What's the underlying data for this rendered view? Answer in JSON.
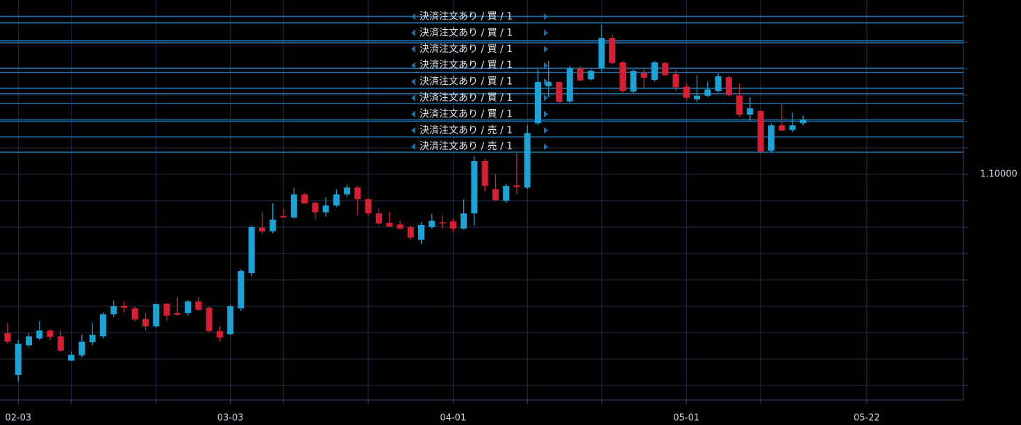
{
  "chart_data": {
    "type": "candlestick",
    "categories": [
      null,
      "02-03",
      null,
      null,
      null,
      null,
      null,
      null,
      null,
      null,
      null,
      null,
      null,
      null,
      null,
      null,
      null,
      null,
      null,
      null,
      null,
      "03-03",
      null,
      null,
      null,
      null,
      null,
      null,
      null,
      null,
      null,
      null,
      null,
      null,
      null,
      null,
      null,
      null,
      null,
      null,
      null,
      null,
      "04-01",
      null,
      null,
      null,
      null,
      null,
      null,
      null,
      null,
      null,
      null,
      null,
      null,
      null,
      null,
      null,
      null,
      null,
      null,
      null,
      null,
      null,
      "05-01",
      null,
      null,
      null,
      null,
      null,
      null,
      null,
      null,
      null,
      null,
      null,
      null,
      null,
      null,
      null,
      null,
      "05-22"
    ],
    "open": [
      1.0699,
      1.062,
      1.0676,
      1.0689,
      1.0704,
      1.0693,
      1.0647,
      1.0657,
      1.0682,
      1.0693,
      1.0735,
      1.0751,
      1.0746,
      1.0726,
      1.0712,
      1.0755,
      1.0737,
      1.0737,
      1.0759,
      1.0747,
      1.0703,
      1.0697,
      1.0746,
      1.0813,
      1.0899,
      1.0892,
      1.0921,
      1.0918,
      1.0962,
      1.0946,
      1.0928,
      1.0941,
      1.0962,
      1.0975,
      1.0953,
      1.0926,
      1.0908,
      1.0905,
      1.09,
      1.0876,
      1.09,
      1.0909,
      1.0911,
      1.0897,
      1.0926,
      1.1025,
      1.0972,
      1.095,
      1.0979,
      1.0975,
      1.1097,
      1.1167,
      1.1175,
      1.1138,
      1.1201,
      1.118,
      1.1201,
      1.1258,
      1.1212,
      1.1157,
      1.1192,
      1.1179,
      1.1211,
      1.119,
      1.1166,
      1.1142,
      1.1149,
      1.1158,
      1.1184,
      1.1149,
      1.1113,
      1.112,
      1.1045,
      1.1093,
      1.1084,
      1.1097,
      null,
      null,
      null,
      null,
      null,
      null
    ],
    "high": [
      1.0718,
      1.0686,
      1.0699,
      1.0722,
      1.0707,
      1.0705,
      1.0664,
      1.0696,
      1.0718,
      1.0738,
      1.076,
      1.0759,
      1.0749,
      1.0737,
      1.0755,
      1.0755,
      1.0767,
      1.0762,
      1.0767,
      1.075,
      1.0712,
      1.0753,
      1.082,
      1.0903,
      1.0929,
      1.0945,
      1.0936,
      1.0975,
      1.0964,
      1.0949,
      1.0957,
      1.0971,
      1.098,
      1.0978,
      1.0955,
      1.0936,
      1.0929,
      1.0912,
      1.0903,
      1.0909,
      1.0925,
      1.0922,
      1.0916,
      1.0953,
      1.1034,
      1.1029,
      1.1001,
      1.0982,
      1.1041,
      1.1093,
      1.1199,
      1.1215,
      1.1176,
      1.1205,
      1.1205,
      1.1199,
      1.1284,
      1.1265,
      1.1215,
      1.1199,
      1.1201,
      1.1215,
      1.1213,
      1.1197,
      1.1172,
      1.1188,
      1.1176,
      1.1192,
      1.1187,
      1.1172,
      1.1146,
      1.1122,
      1.1096,
      1.1133,
      1.1117,
      1.1111,
      null,
      null,
      null,
      null,
      null,
      null
    ],
    "low": [
      1.0679,
      1.0607,
      1.0672,
      1.0686,
      1.0686,
      1.0663,
      1.0646,
      1.0653,
      1.0676,
      1.0689,
      1.073,
      1.0738,
      1.0722,
      1.0705,
      1.071,
      1.0722,
      1.0732,
      1.0732,
      1.0742,
      1.0701,
      1.0683,
      1.0695,
      1.0741,
      1.0807,
      1.0887,
      1.0888,
      1.0918,
      1.0916,
      1.0945,
      1.0914,
      1.092,
      1.0938,
      1.0957,
      1.0922,
      1.0922,
      1.0904,
      1.09,
      1.0896,
      1.0876,
      1.0868,
      1.0896,
      1.0896,
      1.0891,
      1.0895,
      1.0903,
      1.0968,
      1.0949,
      1.0946,
      1.0962,
      1.0972,
      1.1093,
      1.1146,
      1.1136,
      1.1136,
      1.1176,
      1.1178,
      1.1195,
      1.1208,
      1.1155,
      1.1154,
      1.1162,
      1.1176,
      1.1186,
      1.1158,
      1.114,
      1.1137,
      1.1146,
      1.1155,
      1.1147,
      1.1109,
      1.1101,
      1.1038,
      1.1041,
      1.1082,
      1.108,
      1.1093,
      null,
      null,
      null,
      null,
      null,
      null
    ],
    "close": [
      1.0683,
      1.0679,
      1.0693,
      1.0704,
      1.0692,
      1.0666,
      1.0658,
      1.0683,
      1.0696,
      1.0735,
      1.075,
      1.0747,
      1.0725,
      1.0712,
      1.0754,
      1.0732,
      1.0734,
      1.0759,
      1.0743,
      1.0703,
      1.0691,
      1.075,
      1.0817,
      1.09,
      1.0892,
      1.0914,
      1.0918,
      1.0962,
      1.0945,
      1.0928,
      1.0941,
      1.0962,
      1.0975,
      1.0953,
      1.0926,
      1.0907,
      1.0901,
      1.0897,
      1.088,
      1.0904,
      1.0912,
      1.0908,
      1.0897,
      1.0926,
      1.1025,
      1.0978,
      1.0951,
      1.0978,
      1.0976,
      1.1078,
      1.1175,
      1.1175,
      1.1137,
      1.1201,
      1.1178,
      1.1196,
      1.1258,
      1.1211,
      1.1158,
      1.1196,
      1.1183,
      1.1212,
      1.1188,
      1.1165,
      1.1145,
      1.1149,
      1.1161,
      1.1186,
      1.115,
      1.1113,
      1.1125,
      1.1043,
      1.1093,
      1.1083,
      1.1093,
      1.1104,
      null,
      null,
      null,
      null,
      null,
      null
    ],
    "up_color": "#1ca3d6",
    "down_color": "#d81e32",
    "xticks": [
      1,
      6,
      14,
      21,
      26,
      34,
      42,
      49,
      56,
      64,
      71,
      81
    ],
    "ylim": [
      1.05724,
      1.13303
    ],
    "yticks": [
      {
        "value": 1.06,
        "label": null
      },
      {
        "value": 1.065,
        "label": null
      },
      {
        "value": 1.07,
        "label": null
      },
      {
        "value": 1.075,
        "label": null
      },
      {
        "value": 1.08,
        "label": null
      },
      {
        "value": 1.085,
        "label": null
      },
      {
        "value": 1.09,
        "label": null
      },
      {
        "value": 1.095,
        "label": null
      },
      {
        "value": 1.1,
        "label": "1.10000"
      },
      {
        "value": 1.105,
        "label": null
      },
      {
        "value": 1.11,
        "label": null
      },
      {
        "value": 1.115,
        "label": null
      },
      {
        "value": 1.12,
        "label": null
      },
      {
        "value": 1.125,
        "label": null
      },
      {
        "value": 1.13,
        "label": null
      }
    ],
    "grid": true,
    "order_lines": [
      1.1299,
      1.1287,
      1.1253,
      1.1249,
      1.1201,
      1.1193,
      1.1163,
      1.1153,
      1.1134,
      1.1103,
      1.11,
      1.1071,
      1.1042
    ],
    "order_line_color": "#1b6fa8",
    "order_labels": [
      "決済注文あり / 買 / 1",
      "決済注文あり / 買 / 1",
      "決済注文あり / 買 / 1",
      "決済注文あり / 買 / 1",
      "決済注文あり / 買 / 1",
      "決済注文あり / 買 / 1",
      "決済注文あり / 買 / 1",
      "決済注文あり / 売 / 1",
      "決済注文あり / 売 / 1"
    ]
  }
}
